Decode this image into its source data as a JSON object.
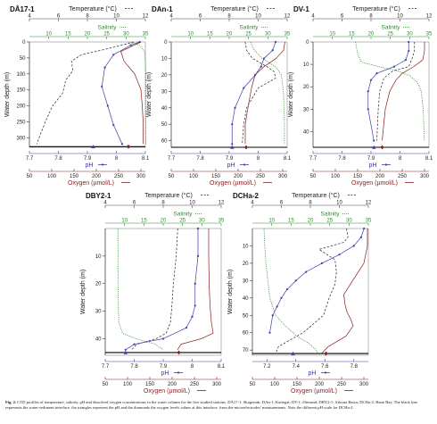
{
  "colors": {
    "temperature": "#222222",
    "salinity": "#2e8b2e",
    "ph": "#3d3da8",
    "oxygen": "#8b1a1a",
    "interface": "#000000"
  },
  "caption": {
    "label": "Fig. 2.",
    "text": "CTD profiles of temperature, salinity, pH and dissolved oxygen concentrations in the water column for the five studied stations. DÅ17-1: Skagerrak; DAn-1: Kattegat; DV-1: Øresund; DBY2-1: Arkona Basin; DCHa-2: Hanö Bay. The black line represents the water-sediment interface, the triangles represent the pH and the diamonds the oxygen levels values at this interface, from the microelectrodes' measurements. Note the different pH scale for DCHa-2."
  },
  "chart_data": [
    {
      "type": "line",
      "station": "DÅ17-1",
      "ylabel": "Water depth (m)",
      "ylim": [
        330,
        0
      ],
      "yticks": [
        0,
        50,
        100,
        150,
        200,
        250,
        300
      ],
      "axes": {
        "temperature": {
          "label": "Temperature (°C)",
          "range": [
            4,
            12
          ],
          "ticks": [
            4,
            6,
            8,
            10,
            12
          ]
        },
        "salinity": {
          "label": "Salinity",
          "range": [
            5,
            35
          ],
          "ticks": [
            10,
            15,
            20,
            25,
            30,
            35
          ]
        },
        "ph": {
          "label": "pH",
          "range": [
            7.7,
            8.1
          ],
          "ticks": [
            7.7,
            7.8,
            7.9,
            8,
            8.1
          ]
        },
        "oxygen": {
          "label": "Oxygen (µmol/L)",
          "range": [
            50,
            310
          ],
          "ticks": [
            50,
            100,
            150,
            200,
            250,
            300
          ]
        }
      },
      "interface_depth": 328,
      "interface_ph": 7.92,
      "interface_oxygen": 272,
      "series": [
        {
          "name": "Temperature",
          "x": [
            11.2,
            10.8,
            9.5,
            7.6,
            6.9,
            7.0,
            6.5,
            6.3,
            5.6,
            5.1,
            4.5
          ],
          "y": [
            0,
            5,
            20,
            40,
            60,
            90,
            120,
            160,
            200,
            250,
            320
          ]
        },
        {
          "name": "Salinity",
          "x": [
            30.5,
            33.5,
            34.8,
            35.0,
            35.1,
            35.1,
            35.1,
            35.1,
            35.1
          ],
          "y": [
            0,
            10,
            30,
            60,
            100,
            150,
            200,
            250,
            320
          ]
        },
        {
          "name": "pH",
          "x": [
            8.08,
            8.05,
            7.99,
            7.96,
            7.95,
            7.97,
            7.99,
            8.02
          ],
          "y": [
            0,
            10,
            40,
            80,
            140,
            200,
            260,
            320
          ]
        },
        {
          "name": "Oxygen",
          "x": [
            300,
            285,
            255,
            262,
            286,
            300,
            303,
            305,
            305
          ],
          "y": [
            0,
            10,
            30,
            60,
            100,
            150,
            200,
            250,
            320
          ]
        }
      ]
    },
    {
      "type": "line",
      "station": "DAn-1",
      "ylabel": "Water depth (m)",
      "ylim": [
        64,
        0
      ],
      "yticks": [
        0,
        10,
        20,
        30,
        40,
        50,
        60
      ],
      "axes": {
        "temperature": {
          "label": "Temperature (°C)",
          "range": [
            4,
            12
          ],
          "ticks": [
            4,
            6,
            8,
            10,
            12
          ]
        },
        "salinity": {
          "label": "Salinity",
          "range": [
            5,
            35
          ],
          "ticks": [
            10,
            15,
            20,
            25,
            30,
            35
          ]
        },
        "ph": {
          "label": "pH",
          "range": [
            7.7,
            8.1
          ],
          "ticks": [
            7.7,
            7.8,
            7.9,
            8,
            8.1
          ]
        },
        "oxygen": {
          "label": "Oxygen (µmol/L)",
          "range": [
            50,
            310
          ],
          "ticks": [
            50,
            100,
            150,
            200,
            250,
            300
          ]
        }
      },
      "interface_depth": 64,
      "interface_ph": 7.91,
      "interface_oxygen": 218,
      "series": [
        {
          "name": "Temperature",
          "x": [
            9.1,
            9.2,
            9.6,
            10.6,
            11.1,
            11.2,
            10.0,
            9.2,
            9.0,
            8.9
          ],
          "y": [
            0,
            5,
            10,
            15,
            18,
            22,
            28,
            40,
            50,
            62
          ]
        },
        {
          "name": "Salinity",
          "x": [
            25.5,
            26.5,
            28.5,
            32.0,
            33.5,
            34.0,
            34.2,
            34.3,
            34.3
          ],
          "y": [
            0,
            5,
            10,
            15,
            20,
            30,
            40,
            50,
            62
          ]
        },
        {
          "name": "pH",
          "x": [
            8.06,
            8.05,
            8.02,
            8.01,
            7.99,
            7.95,
            7.92,
            7.91,
            7.91
          ],
          "y": [
            0,
            5,
            10,
            15,
            20,
            28,
            40,
            50,
            62
          ]
        },
        {
          "name": "Oxygen",
          "x": [
            305,
            302,
            285,
            258,
            238,
            230,
            222,
            216,
            216
          ],
          "y": [
            0,
            5,
            10,
            15,
            20,
            28,
            40,
            50,
            62
          ]
        }
      ]
    },
    {
      "type": "line",
      "station": "DV-1",
      "ylabel": "Water depth (m)",
      "ylim": [
        47,
        0
      ],
      "yticks": [
        0,
        10,
        20,
        30,
        40
      ],
      "axes": {
        "temperature": {
          "label": "Temperature (°C)",
          "range": [
            4,
            12
          ],
          "ticks": [
            4,
            6,
            8,
            10,
            12
          ]
        },
        "salinity": {
          "label": "Salinity",
          "range": [
            5,
            35
          ],
          "ticks": [
            10,
            15,
            20,
            25,
            30,
            35
          ]
        },
        "ph": {
          "label": "pH",
          "range": [
            7.7,
            8.1
          ],
          "ticks": [
            7.7,
            7.8,
            7.9,
            8,
            8.1
          ]
        },
        "oxygen": {
          "label": "Oxygen (µmol/L)",
          "range": [
            50,
            310
          ],
          "ticks": [
            50,
            100,
            150,
            200,
            250,
            300
          ]
        }
      },
      "interface_depth": 47,
      "interface_ph": 7.91,
      "interface_oxygen": 205,
      "series": [
        {
          "name": "Temperature",
          "x": [
            11.0,
            11.0,
            10.8,
            10.6,
            9.5,
            8.9,
            8.6,
            8.5,
            8.4
          ],
          "y": [
            0,
            4,
            8,
            11,
            13,
            16,
            22,
            30,
            44
          ]
        },
        {
          "name": "Salinity",
          "x": [
            16.0,
            16.5,
            17.5,
            22.0,
            27.0,
            30.0,
            32.0,
            33.0,
            33.5,
            33.8
          ],
          "y": [
            0,
            5,
            9,
            11,
            13,
            15,
            18,
            22,
            30,
            44
          ]
        },
        {
          "name": "pH",
          "x": [
            8.03,
            8.03,
            8.02,
            7.98,
            7.92,
            7.9,
            7.89,
            7.89,
            7.91
          ],
          "y": [
            0,
            4,
            8,
            11,
            14,
            17,
            22,
            30,
            44
          ]
        },
        {
          "name": "Oxygen",
          "x": [
            300,
            300,
            296,
            276,
            250,
            236,
            222,
            212,
            205
          ],
          "y": [
            0,
            4,
            8,
            11,
            14,
            17,
            22,
            30,
            44
          ]
        }
      ]
    },
    {
      "type": "line",
      "station": "DBY2-1",
      "ylabel": "Water depth (m)",
      "ylim": [
        46,
        0
      ],
      "yticks": [
        10,
        20,
        30,
        40
      ],
      "axes": {
        "temperature": {
          "label": "Temperature (°C)",
          "range": [
            4,
            12
          ],
          "ticks": [
            4,
            6,
            8,
            10,
            12
          ]
        },
        "salinity": {
          "label": "Salinity",
          "range": [
            5,
            35
          ],
          "ticks": [
            10,
            15,
            20,
            25,
            30,
            35
          ]
        },
        "ph": {
          "label": "pH",
          "range": [
            7.7,
            8.1
          ],
          "ticks": [
            7.7,
            7.8,
            7.9,
            8,
            8.1
          ]
        },
        "oxygen": {
          "label": "Oxygen (µmol/L)",
          "range": [
            50,
            310
          ],
          "ticks": [
            50,
            100,
            150,
            200,
            250,
            300
          ]
        }
      },
      "interface_depth": 45,
      "interface_ph": 7.77,
      "interface_oxygen": 215,
      "series": [
        {
          "name": "Temperature",
          "x": [
            9.0,
            8.9,
            8.7,
            8.6,
            8.5,
            8.2,
            7.5,
            6.2,
            5.8
          ],
          "y": [
            0,
            10,
            20,
            28,
            34,
            38,
            40,
            42,
            44
          ]
        },
        {
          "name": "Salinity",
          "x": [
            8.3,
            8.3,
            8.3,
            8.4,
            8.5,
            9.5,
            13.0,
            18.0,
            20.0
          ],
          "y": [
            0,
            10,
            20,
            28,
            34,
            38,
            40,
            42,
            44
          ]
        },
        {
          "name": "pH",
          "x": [
            8.02,
            8.02,
            8.01,
            8.01,
            8.0,
            7.98,
            7.9,
            7.8,
            7.77
          ],
          "y": [
            0,
            10,
            20,
            28,
            32,
            36,
            40,
            42,
            44
          ]
        },
        {
          "name": "Oxygen",
          "x": [
            282,
            282,
            283,
            285,
            288,
            292,
            265,
            220,
            212
          ],
          "y": [
            0,
            10,
            20,
            28,
            34,
            38,
            40,
            42,
            44
          ]
        }
      ]
    },
    {
      "type": "line",
      "station": "DCHa-2",
      "ylabel": "Water depth (m)",
      "ylim": [
        73,
        0
      ],
      "yticks": [
        10,
        20,
        30,
        40,
        50,
        60,
        70
      ],
      "axes": {
        "temperature": {
          "label": "Temperature (°C)",
          "range": [
            4,
            12
          ],
          "ticks": [
            4,
            6,
            8,
            10,
            12
          ]
        },
        "salinity": {
          "label": "Salinity",
          "range": [
            5,
            35
          ],
          "ticks": [
            10,
            15,
            20,
            25,
            30,
            35
          ]
        },
        "ph": {
          "label": "pH",
          "range": [
            7.1,
            7.9
          ],
          "ticks": [
            7.2,
            7.4,
            7.6,
            7.8
          ]
        },
        "oxygen": {
          "label": "Oxygen (µmol/L)",
          "range": [
            50,
            310
          ],
          "ticks": [
            50,
            100,
            150,
            200,
            250,
            300
          ]
        }
      },
      "interface_depth": 72,
      "interface_ph": 7.38,
      "interface_oxygen": 215,
      "series": [
        {
          "name": "Temperature",
          "x": [
            10.5,
            10.6,
            10.3,
            8.6,
            9.7,
            9.8,
            9.7,
            9.3,
            8.9,
            7.5,
            5.8,
            5.6
          ],
          "y": [
            0,
            5,
            8,
            12,
            18,
            25,
            32,
            40,
            50,
            60,
            68,
            72
          ]
        },
        {
          "name": "Salinity",
          "x": [
            8.0,
            8.2,
            8.5,
            9.0,
            9.5,
            11.0,
            13.5,
            16.5,
            19.5,
            21.5,
            22.0
          ],
          "y": [
            0,
            10,
            20,
            30,
            40,
            50,
            56,
            62,
            66,
            70,
            72
          ]
        },
        {
          "name": "pH",
          "x": [
            7.87,
            7.85,
            7.8,
            7.7,
            7.58,
            7.47,
            7.4,
            7.34,
            7.3,
            7.27,
            7.24,
            7.22
          ],
          "y": [
            0,
            5,
            10,
            15,
            20,
            25,
            30,
            35,
            40,
            45,
            50,
            60
          ]
        },
        {
          "name": "Oxygen",
          "x": [
            308,
            308,
            300,
            275,
            255,
            258,
            262,
            270,
            276,
            260,
            220,
            205
          ],
          "y": [
            0,
            10,
            20,
            30,
            38,
            44,
            48,
            52,
            56,
            62,
            68,
            72
          ]
        }
      ]
    }
  ]
}
